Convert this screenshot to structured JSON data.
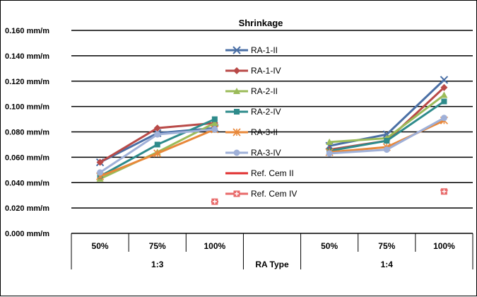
{
  "chart_data": {
    "type": "line",
    "title": "Shrinkage",
    "categories": [
      "50%",
      "75%",
      "100%",
      "",
      "50%",
      "75%",
      "100%"
    ],
    "group_labels": [
      "1:3",
      "RA Type",
      "1:4"
    ],
    "ylim": [
      0,
      0.16
    ],
    "yticks": [
      0.0,
      0.02,
      0.04,
      0.06,
      0.08,
      0.1,
      0.12,
      0.14,
      0.16
    ],
    "ytick_labels": [
      "0.000 mm/m",
      "0.020 mm/m",
      "0.040 mm/m",
      "0.060 mm/m",
      "0.080 mm/m",
      "0.100 mm/m",
      "0.120 mm/m",
      "0.140 mm/m",
      "0.160 mm/m"
    ],
    "grid": true,
    "legend_position": "center",
    "series": [
      {
        "name": "RA-1-II",
        "color": "#4a6fa5",
        "marker": "x",
        "values": [
          0.056,
          0.079,
          0.083,
          null,
          0.069,
          0.078,
          0.121
        ]
      },
      {
        "name": "RA-1-IV",
        "color": "#b94a48",
        "marker": "diamond",
        "values": [
          0.056,
          0.083,
          0.087,
          null,
          0.066,
          0.073,
          0.115
        ]
      },
      {
        "name": "RA-2-II",
        "color": "#9bbb59",
        "marker": "triangle",
        "values": [
          0.043,
          0.064,
          0.087,
          null,
          0.072,
          0.075,
          0.109
        ]
      },
      {
        "name": "RA-2-IV",
        "color": "#2e8b8b",
        "marker": "square",
        "values": [
          0.045,
          0.07,
          0.09,
          null,
          0.065,
          0.073,
          0.104
        ]
      },
      {
        "name": "RA-3-II",
        "color": "#e8883a",
        "marker": "star",
        "values": [
          0.045,
          0.063,
          0.082,
          null,
          0.064,
          0.068,
          0.089
        ]
      },
      {
        "name": "RA-3-IV",
        "color": "#9fb0d8",
        "marker": "circle",
        "values": [
          0.048,
          0.078,
          0.082,
          null,
          0.063,
          0.066,
          0.091
        ]
      },
      {
        "name": "Ref. Cem II",
        "color": "#e03030",
        "marker": "dash",
        "values": [
          null,
          null,
          0.025,
          null,
          null,
          null,
          0.034
        ]
      },
      {
        "name": "Ref. Cem IV",
        "color": "#e86a6a",
        "marker": "plus-square",
        "values": [
          null,
          null,
          0.025,
          null,
          null,
          null,
          0.033
        ]
      }
    ]
  }
}
